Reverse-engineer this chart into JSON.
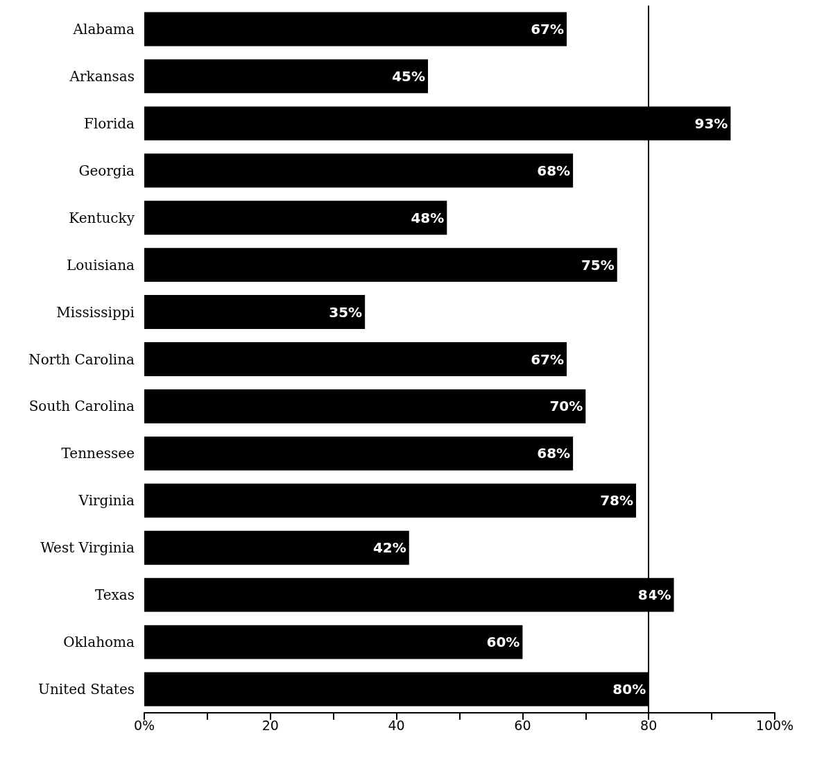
{
  "chart_data": {
    "type": "bar",
    "orientation": "horizontal",
    "categories": [
      "Alabama",
      "Arkansas",
      "Florida",
      "Georgia",
      "Kentucky",
      "Louisiana",
      "Mississippi",
      "North Carolina",
      "South Carolina",
      "Tennessee",
      "Virginia",
      "West Virginia",
      "Texas",
      "Oklahoma",
      "United States"
    ],
    "values": [
      67,
      45,
      93,
      68,
      48,
      75,
      35,
      67,
      70,
      68,
      78,
      42,
      84,
      60,
      80
    ],
    "value_labels": [
      "67%",
      "45%",
      "93%",
      "68%",
      "48%",
      "75%",
      "35%",
      "67%",
      "70%",
      "68%",
      "78%",
      "42%",
      "84%",
      "60%",
      "80%"
    ],
    "color": "#000000",
    "xlim": [
      0,
      100
    ],
    "xticks": [
      {
        "value": 0,
        "label": "0%"
      },
      {
        "value": 10,
        "label": null
      },
      20,
      {
        "value": 30,
        "label": null
      },
      40,
      {
        "value": 50,
        "label": null
      },
      60,
      {
        "value": 70,
        "label": null
      },
      80,
      {
        "value": 90,
        "label": null
      },
      {
        "value": 100,
        "label": "100%"
      }
    ],
    "ref_lines": [
      {
        "axis": "x",
        "value": 80,
        "color": "#000000"
      }
    ],
    "grid": false
  }
}
